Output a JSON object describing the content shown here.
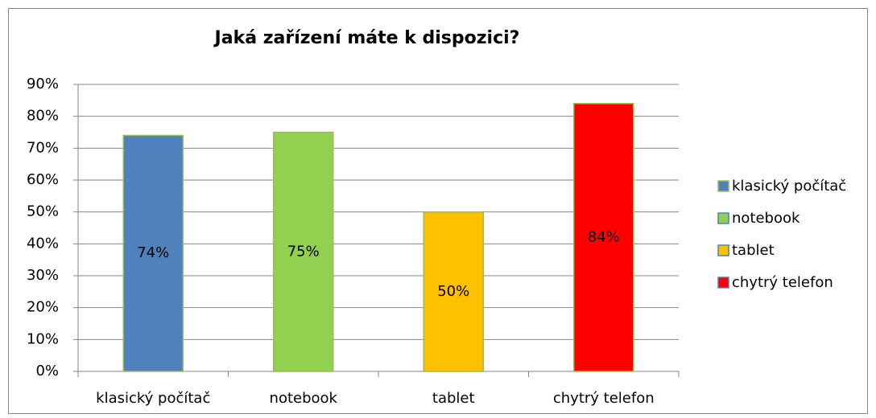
{
  "chart_data": {
    "type": "bar",
    "title": "Jaká zařízení máte k dispozici?",
    "categories": [
      "klasický počítač",
      "notebook",
      "tablet",
      "chytrý telefon"
    ],
    "values": [
      74,
      75,
      50,
      84
    ],
    "value_labels": [
      "74%",
      "75%",
      "50%",
      "84%"
    ],
    "colors": [
      "#4f81bd",
      "#92d050",
      "#ffc000",
      "#ff0000"
    ],
    "ylim": [
      0,
      90
    ],
    "yticks": [
      {
        "value": 0,
        "label": "0%"
      },
      {
        "value": 10,
        "label": "10%"
      },
      {
        "value": 20,
        "label": "20%"
      },
      {
        "value": 30,
        "label": "30%"
      },
      {
        "value": 40,
        "label": "40%"
      },
      {
        "value": 50,
        "label": "50%"
      },
      {
        "value": 60,
        "label": "60%"
      },
      {
        "value": 70,
        "label": "70%"
      },
      {
        "value": 80,
        "label": "80%"
      },
      {
        "value": 90,
        "label": "90%"
      }
    ],
    "grid": true,
    "legend": "right"
  }
}
